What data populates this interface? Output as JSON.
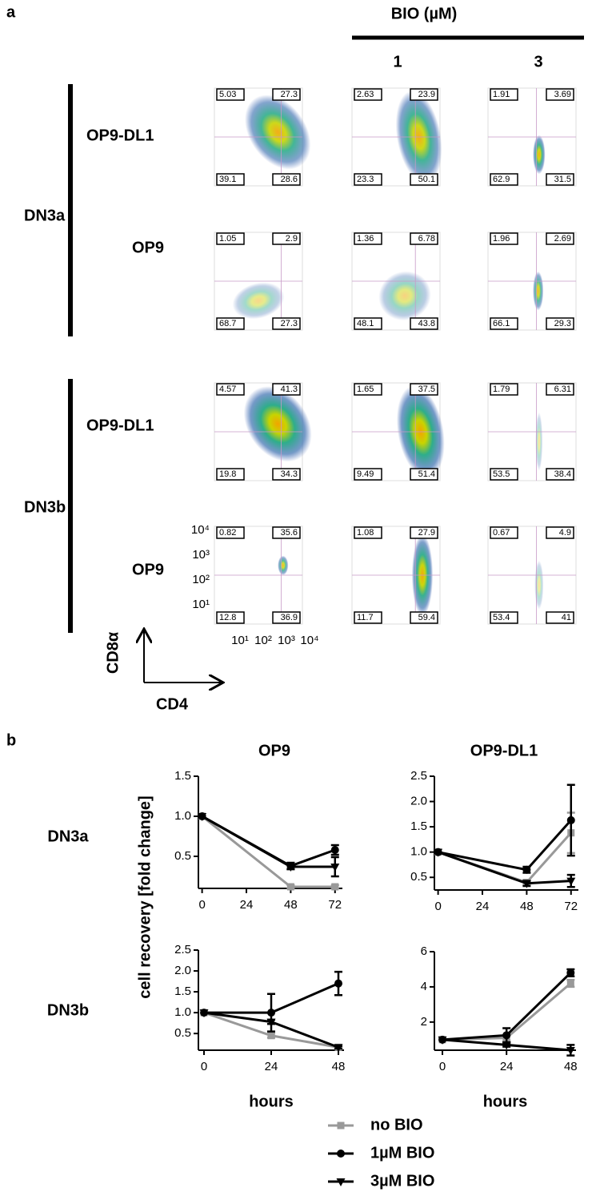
{
  "panel_a": {
    "label": "a",
    "treatment": "BIO (µM)",
    "doses": [
      "1",
      "3"
    ],
    "groups": [
      {
        "name": "DN3a",
        "rows": [
          {
            "name": "OP9-DL1",
            "plots": [
              [
                "5.03",
                "27.3",
                "39.1",
                "28.6"
              ],
              [
                "2.63",
                "23.9",
                "23.3",
                "50.1"
              ],
              [
                "1.91",
                "3.69",
                "62.9",
                "31.5"
              ]
            ]
          },
          {
            "name": "OP9",
            "plots": [
              [
                "1.05",
                "2.9",
                "68.7",
                "27.3"
              ],
              [
                "1.36",
                "6.78",
                "48.1",
                "43.8"
              ],
              [
                "1.96",
                "2.69",
                "66.1",
                "29.3"
              ]
            ]
          }
        ]
      },
      {
        "name": "DN3b",
        "rows": [
          {
            "name": "OP9-DL1",
            "plots": [
              [
                "4.57",
                "41.3",
                "19.8",
                "34.3"
              ],
              [
                "1.65",
                "37.5",
                "9.49",
                "51.4"
              ],
              [
                "1.79",
                "6.31",
                "53.5",
                "38.4"
              ]
            ]
          },
          {
            "name": "OP9",
            "plots": [
              [
                "0.82",
                "35.6",
                "12.8",
                "36.9"
              ],
              [
                "1.08",
                "27.9",
                "11.7",
                "59.4"
              ],
              [
                "0.67",
                "4.9",
                "53.4",
                "41"
              ]
            ]
          }
        ]
      }
    ],
    "axis": {
      "ticks": [
        "10¹",
        "10²",
        "10³",
        "10⁴"
      ],
      "y": "CD8α",
      "x": "CD4"
    }
  },
  "panel_b_label": "b",
  "chart_data": [
    {
      "type": "line",
      "title": "OP9",
      "row_label": "DN3a",
      "ylabel": "cell recovery [fold change]",
      "x": [
        0,
        48,
        72
      ],
      "xlim": [
        -2,
        76
      ],
      "xticks": [
        0,
        24,
        48,
        72
      ],
      "ylim": [
        0.1,
        1.5
      ],
      "yticks": [
        0.5,
        {
          "value": 1,
          "label": "1.0"
        },
        1.5
      ],
      "series": [
        {
          "name": "no BIO",
          "color": "#999999",
          "marker": "square",
          "values": [
            1.0,
            0.12,
            0.12
          ],
          "errors": [
            null,
            0.02,
            0.02
          ]
        },
        {
          "name": "1µM BIO",
          "color": "#000000",
          "marker": "circle",
          "values": [
            1.0,
            0.38,
            0.58
          ],
          "errors": [
            null,
            0.04,
            0.06
          ]
        },
        {
          "name": "3µM BIO",
          "color": "#000000",
          "marker": "triangle-down",
          "values": [
            1.0,
            0.37,
            0.37
          ],
          "errors": [
            null,
            0.03,
            0.12
          ]
        }
      ]
    },
    {
      "type": "line",
      "title": "OP9-DL1",
      "x": [
        0,
        48,
        72
      ],
      "xlim": [
        -2,
        76
      ],
      "xticks": [
        0,
        24,
        48,
        72
      ],
      "ylim": [
        0.25,
        2.5
      ],
      "yticks": [
        0.5,
        {
          "value": 1,
          "label": "1.0"
        },
        1.5,
        {
          "value": 2,
          "label": "2.0"
        },
        2.5
      ],
      "series": [
        {
          "color": "#999999",
          "marker": "square",
          "values": [
            1.0,
            0.4,
            1.38
          ],
          "errors": [
            null,
            0.05,
            0.4
          ]
        },
        {
          "color": "#000000",
          "marker": "circle",
          "values": [
            1.0,
            0.65,
            1.63
          ],
          "errors": [
            null,
            0.06,
            0.7
          ]
        },
        {
          "color": "#000000",
          "marker": "triangle-down",
          "values": [
            1.0,
            0.38,
            0.43
          ],
          "errors": [
            null,
            0.05,
            0.12
          ]
        }
      ]
    },
    {
      "type": "line",
      "row_label": "DN3b",
      "xlabel": "hours",
      "x": [
        0,
        24,
        48
      ],
      "xlim": [
        -2,
        50
      ],
      "xticks": [
        0,
        24,
        48
      ],
      "ylim": [
        0.1,
        2.5
      ],
      "yticks": [
        0.5,
        {
          "value": 1,
          "label": "1.0"
        },
        1.5,
        {
          "value": 2,
          "label": "2.0"
        },
        2.5
      ],
      "series": [
        {
          "color": "#999999",
          "marker": "square",
          "values": [
            1.0,
            0.45,
            0.17
          ],
          "errors": [
            null,
            0.05,
            0.03
          ]
        },
        {
          "color": "#000000",
          "marker": "circle",
          "values": [
            1.0,
            1.0,
            1.7
          ],
          "errors": [
            null,
            0.45,
            0.28
          ]
        },
        {
          "color": "#000000",
          "marker": "triangle-down",
          "values": [
            1.0,
            0.78,
            0.17
          ],
          "errors": [
            null,
            0.05,
            0.03
          ]
        }
      ]
    },
    {
      "type": "line",
      "xlabel": "hours",
      "x": [
        0,
        24,
        48
      ],
      "xlim": [
        -3,
        50
      ],
      "xticks": [
        0,
        24,
        48
      ],
      "ylim": [
        0.4,
        6
      ],
      "yticks": [
        2,
        4,
        6
      ],
      "series": [
        {
          "color": "#999999",
          "marker": "square",
          "values": [
            1.0,
            1.1,
            4.2
          ],
          "errors": [
            null,
            0.15,
            0.2
          ]
        },
        {
          "color": "#000000",
          "marker": "circle",
          "values": [
            1.0,
            1.25,
            4.8
          ],
          "errors": [
            null,
            0.4,
            0.2
          ]
        },
        {
          "color": "#000000",
          "marker": "triangle-down",
          "values": [
            1.0,
            0.7,
            0.4
          ],
          "errors": [
            null,
            0.1,
            0.3
          ]
        }
      ]
    }
  ]
}
